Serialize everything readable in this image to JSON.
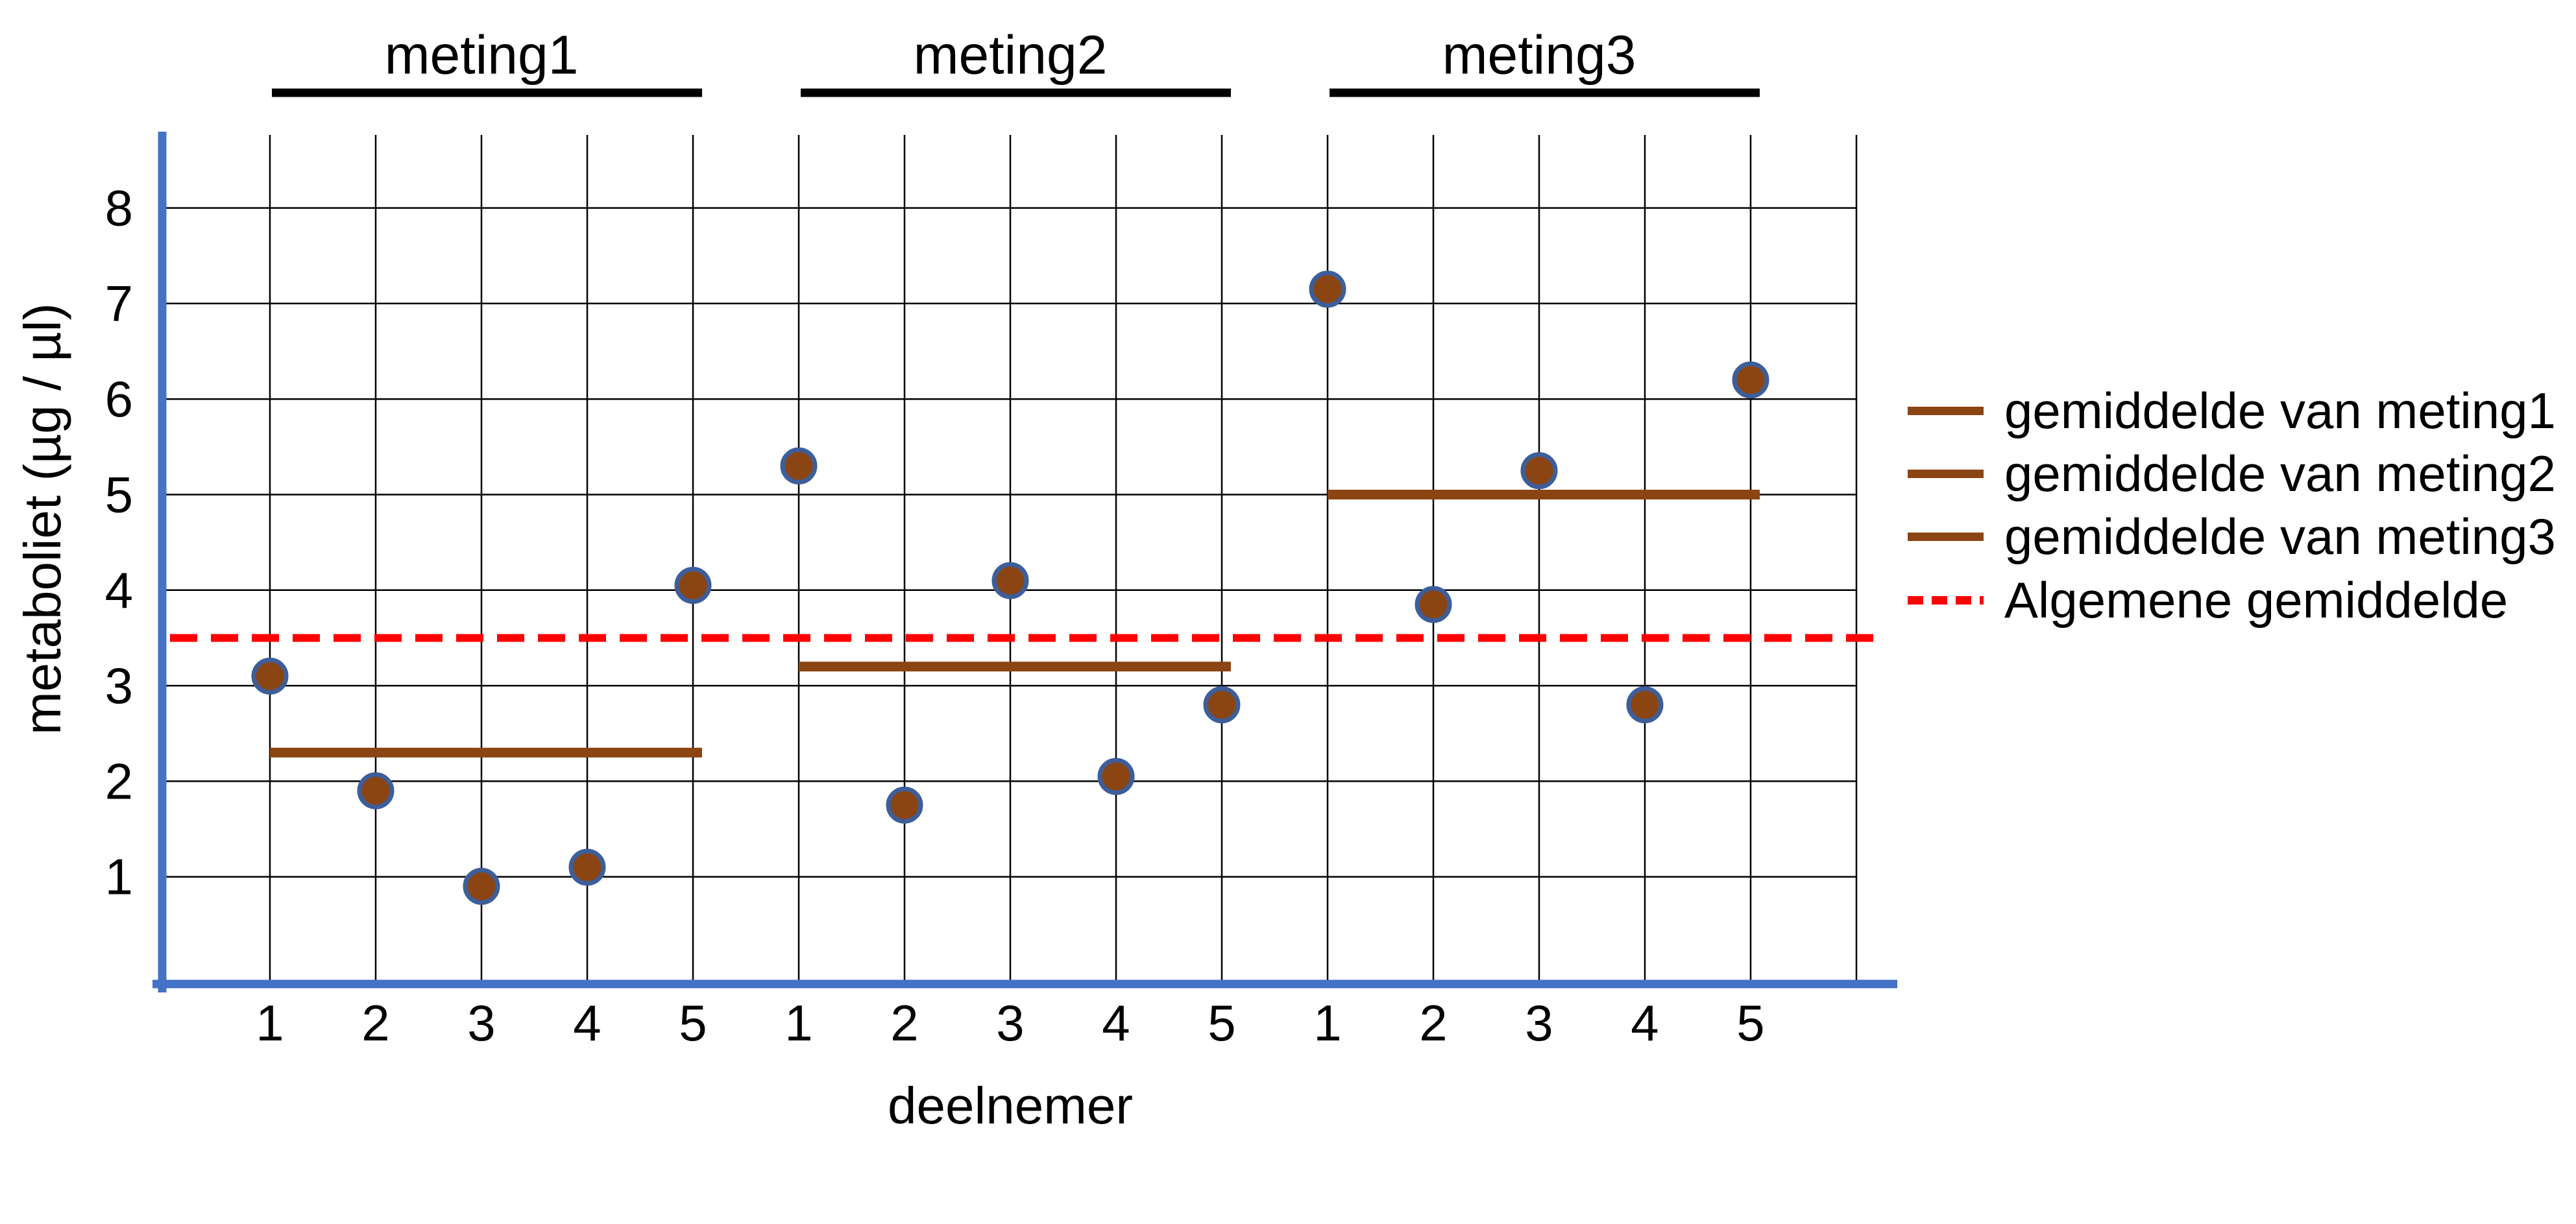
{
  "chart_data": {
    "type": "scatter",
    "title": "",
    "xlabel": "deelnemer",
    "ylabel": "metaboliet (µg / µl)",
    "ylim": [
      0,
      8.8
    ],
    "y_ticks": [
      "1",
      "2",
      "3",
      "4",
      "5",
      "6",
      "7",
      "8"
    ],
    "grid": true,
    "legend_position": "right",
    "groups": [
      {
        "label": "meting1",
        "deelnemers": [
          "1",
          "2",
          "3",
          "4",
          "5"
        ],
        "values": [
          3.1,
          1.9,
          0.9,
          1.1,
          4.05
        ],
        "mean": 2.3
      },
      {
        "label": "meting2",
        "deelnemers": [
          "1",
          "2",
          "3",
          "4",
          "5"
        ],
        "values": [
          5.3,
          1.75,
          4.1,
          2.05,
          2.8
        ],
        "mean": 3.2
      },
      {
        "label": "meting3",
        "deelnemers": [
          "1",
          "2",
          "3",
          "4",
          "5"
        ],
        "values": [
          7.15,
          3.85,
          5.25,
          2.8,
          6.2
        ],
        "mean": 5.0
      }
    ],
    "overall_mean": 3.5,
    "legend": [
      {
        "label": "gemiddelde van meting1",
        "style": "solid",
        "color": "#8B4513"
      },
      {
        "label": "gemiddelde van meting2",
        "style": "solid",
        "color": "#8B4513"
      },
      {
        "label": "gemiddelde van meting3",
        "style": "solid",
        "color": "#8B4513"
      },
      {
        "label": "Algemene gemiddelde",
        "style": "dashed",
        "color": "#FF0000"
      }
    ],
    "colors": {
      "point_fill": "#8B4513",
      "point_stroke": "#3D5E9A",
      "mean_line": "#8B4513",
      "overall_mean_line": "#FF0000",
      "axis": "#4472C4",
      "gridline": "#000000",
      "header_line": "#000000",
      "text": "#000000"
    }
  }
}
